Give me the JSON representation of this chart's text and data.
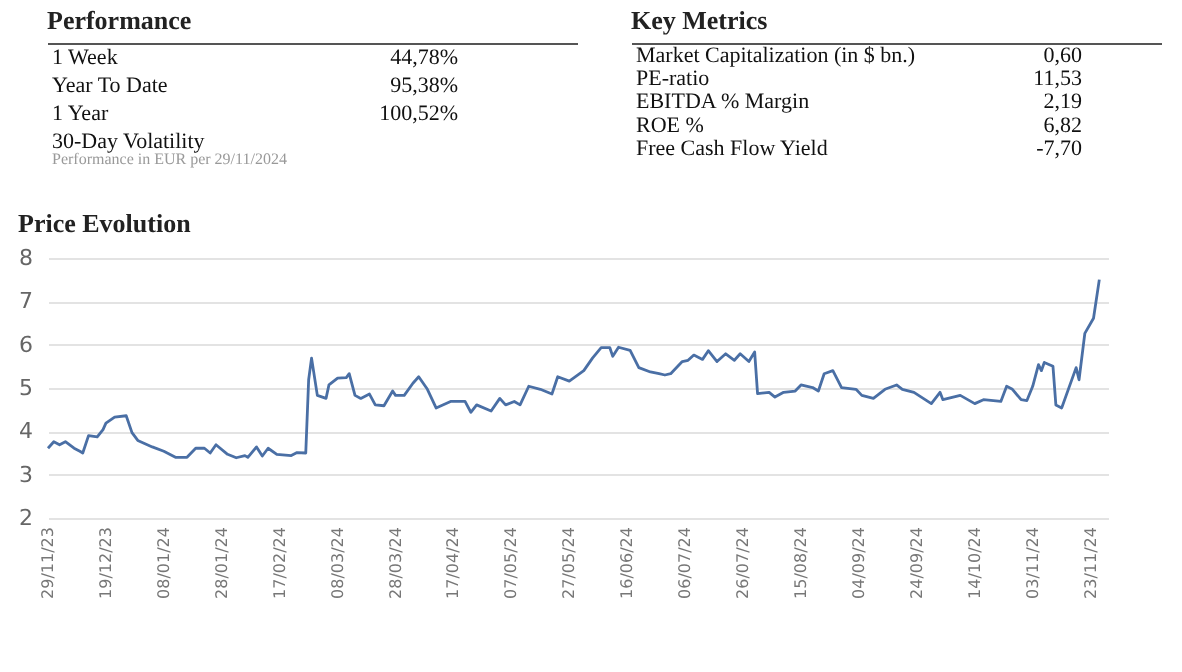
{
  "chart_data": [
    {
      "type": "other",
      "title": "Performance",
      "categories": [
        "1 Week",
        "Year To Date",
        "1 Year",
        "30-Day Volatility"
      ],
      "values": [
        44.78,
        95.38,
        100.52,
        null
      ],
      "value_labels": [
        "44,78%",
        "95,38%",
        "100,52%",
        null
      ],
      "annotations": [
        "Performance in EUR per 29/11/2024"
      ]
    },
    {
      "type": "other",
      "title": "Key Metrics",
      "categories": [
        "Market Capitalization (in $ bn.)",
        "PE-ratio",
        "EBITDA % Margin",
        "ROE %",
        "Free Cash Flow Yield"
      ],
      "values": [
        0.6,
        11.53,
        2.19,
        6.82,
        -7.7
      ],
      "value_labels": [
        "0,60",
        "11,53",
        "2,19",
        "6,82",
        "-7,70"
      ]
    },
    {
      "type": "line",
      "title": "Price Evolution",
      "color": "#4a6fa5",
      "grid": "y",
      "x": [
        "2023-11-29",
        "2023-12-01",
        "2023-12-03",
        "2023-12-05",
        "2023-12-08",
        "2023-12-10",
        "2023-12-11",
        "2023-12-13",
        "2023-12-16",
        "2023-12-18",
        "2023-12-19",
        "2023-12-22",
        "2023-12-26",
        "2023-12-28",
        "2023-12-30",
        "2024-01-04",
        "2024-01-08",
        "2024-01-12",
        "2024-01-16",
        "2024-01-19",
        "2024-01-22",
        "2024-01-24",
        "2024-01-26",
        "2024-01-30",
        "2024-02-02",
        "2024-02-05",
        "2024-02-06",
        "2024-02-09",
        "2024-02-11",
        "2024-02-13",
        "2024-02-16",
        "2024-02-21",
        "2024-02-23",
        "2024-02-26",
        "2024-02-27",
        "2024-02-28",
        "2024-03-01",
        "2024-03-04",
        "2024-03-05",
        "2024-03-08",
        "2024-03-11",
        "2024-03-12",
        "2024-03-14",
        "2024-03-16",
        "2024-03-19",
        "2024-03-21",
        "2024-03-24",
        "2024-03-27",
        "2024-03-28",
        "2024-03-31",
        "2024-04-03",
        "2024-04-05",
        "2024-04-08",
        "2024-04-11",
        "2024-04-16",
        "2024-04-21",
        "2024-04-23",
        "2024-04-25",
        "2024-04-30",
        "2024-05-03",
        "2024-05-05",
        "2024-05-08",
        "2024-05-10",
        "2024-05-13",
        "2024-05-17",
        "2024-05-21",
        "2024-05-23",
        "2024-05-27",
        "2024-06-01",
        "2024-06-04",
        "2024-06-07",
        "2024-06-10",
        "2024-06-11",
        "2024-06-13",
        "2024-06-17",
        "2024-06-20",
        "2024-06-24",
        "2024-06-27",
        "2024-06-29",
        "2024-07-01",
        "2024-07-05",
        "2024-07-07",
        "2024-07-09",
        "2024-07-12",
        "2024-07-14",
        "2024-07-17",
        "2024-07-20",
        "2024-07-23",
        "2024-07-25",
        "2024-07-28",
        "2024-07-30",
        "2024-07-31",
        "2024-08-04",
        "2024-08-06",
        "2024-08-09",
        "2024-08-13",
        "2024-08-15",
        "2024-08-19",
        "2024-08-21",
        "2024-08-23",
        "2024-08-26",
        "2024-08-29",
        "2024-09-03",
        "2024-09-05",
        "2024-09-09",
        "2024-09-13",
        "2024-09-17",
        "2024-09-19",
        "2024-09-23",
        "2024-09-29",
        "2024-10-02",
        "2024-10-03",
        "2024-10-09",
        "2024-10-14",
        "2024-10-17",
        "2024-10-23",
        "2024-10-25",
        "2024-10-27",
        "2024-10-30",
        "2024-11-01",
        "2024-11-03",
        "2024-11-05",
        "2024-11-06",
        "2024-11-07",
        "2024-11-10",
        "2024-11-11",
        "2024-11-13",
        "2024-11-18",
        "2024-11-19",
        "2024-11-21",
        "2024-11-24",
        "2024-11-26"
      ],
      "values": [
        3.61,
        3.76,
        3.69,
        3.76,
        3.61,
        3.54,
        3.5,
        3.9,
        3.87,
        4.04,
        4.19,
        4.33,
        4.36,
        3.97,
        3.79,
        3.64,
        3.54,
        3.4,
        3.4,
        3.61,
        3.61,
        3.5,
        3.69,
        3.47,
        3.39,
        3.44,
        3.4,
        3.64,
        3.43,
        3.61,
        3.47,
        3.44,
        3.51,
        3.5,
        5.19,
        5.69,
        4.83,
        4.76,
        5.07,
        5.23,
        5.24,
        5.33,
        4.83,
        4.76,
        4.86,
        4.61,
        4.59,
        4.93,
        4.83,
        4.83,
        5.11,
        5.26,
        4.97,
        4.54,
        4.69,
        4.69,
        4.44,
        4.61,
        4.47,
        4.76,
        4.61,
        4.69,
        4.61,
        5.04,
        4.97,
        4.86,
        5.26,
        5.16,
        5.4,
        5.69,
        5.93,
        5.93,
        5.73,
        5.94,
        5.87,
        5.47,
        5.37,
        5.33,
        5.3,
        5.33,
        5.61,
        5.64,
        5.76,
        5.66,
        5.86,
        5.61,
        5.79,
        5.64,
        5.79,
        5.61,
        5.83,
        4.87,
        4.9,
        4.79,
        4.9,
        4.93,
        5.07,
        5.01,
        4.93,
        5.33,
        5.4,
        5.01,
        4.97,
        4.83,
        4.76,
        4.97,
        5.07,
        4.97,
        4.9,
        4.64,
        4.9,
        4.73,
        4.83,
        4.64,
        4.73,
        4.69,
        5.04,
        4.97,
        4.73,
        4.71,
        5.04,
        5.54,
        5.4,
        5.59,
        5.5,
        4.61,
        4.54,
        5.47,
        5.19,
        6.26,
        6.61,
        7.5
      ],
      "xlim": [
        "2023-11-29",
        "2024-11-29"
      ],
      "xticks": [
        {
          "value": "2023-11-29",
          "label": "29/11/23"
        },
        {
          "value": "2023-12-19",
          "label": "19/12/23"
        },
        {
          "value": "2024-01-08",
          "label": "08/01/24"
        },
        {
          "value": "2024-01-28",
          "label": "28/01/24"
        },
        {
          "value": "2024-02-17",
          "label": "17/02/24"
        },
        {
          "value": "2024-03-08",
          "label": "08/03/24"
        },
        {
          "value": "2024-03-28",
          "label": "28/03/24"
        },
        {
          "value": "2024-04-17",
          "label": "17/04/24"
        },
        {
          "value": "2024-05-07",
          "label": "07/05/24"
        },
        {
          "value": "2024-05-27",
          "label": "27/05/24"
        },
        {
          "value": "2024-06-16",
          "label": "16/06/24"
        },
        {
          "value": "2024-07-06",
          "label": "06/07/24"
        },
        {
          "value": "2024-07-26",
          "label": "26/07/24"
        },
        {
          "value": "2024-08-15",
          "label": "15/08/24"
        },
        {
          "value": "2024-09-04",
          "label": "04/09/24"
        },
        {
          "value": "2024-09-24",
          "label": "24/09/24"
        },
        {
          "value": "2024-10-14",
          "label": "14/10/24"
        },
        {
          "value": "2024-11-03",
          "label": "03/11/24"
        },
        {
          "value": "2024-11-23",
          "label": "23/11/24"
        }
      ],
      "ylim": [
        2,
        8
      ],
      "yticks": [
        2,
        3,
        4,
        5,
        6,
        7,
        8
      ]
    }
  ]
}
